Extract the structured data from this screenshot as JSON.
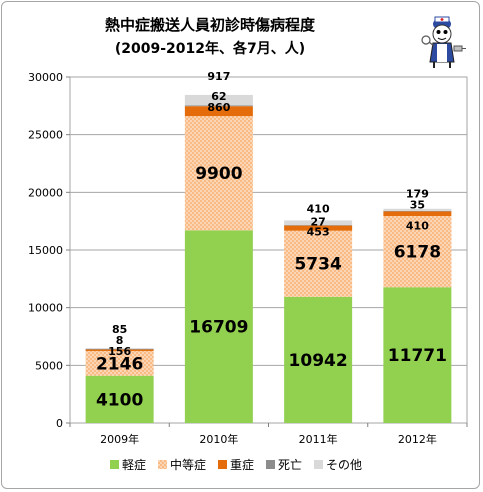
{
  "chart_data": {
    "type": "bar",
    "stacked": true,
    "title": "熱中症搬送人員初診時傷病程度",
    "subtitle": "(2009-2012年、各7月、人)",
    "categories": [
      "2009年",
      "2010年",
      "2011年",
      "2012年"
    ],
    "ylim": [
      0,
      30000
    ],
    "yticks": [
      0,
      5000,
      10000,
      15000,
      20000,
      25000,
      30000
    ],
    "grid": true,
    "legend_position": "bottom",
    "series": [
      {
        "name": "軽症",
        "color": "#92d050",
        "values": [
          4100,
          16709,
          10942,
          11771
        ]
      },
      {
        "name": "中等症",
        "color": "#fac090",
        "values": [
          2146,
          9900,
          5734,
          6178
        ]
      },
      {
        "name": "重症",
        "color": "#e46c0a",
        "values": [
          156,
          860,
          453,
          410
        ]
      },
      {
        "name": "死亡",
        "color": "#8c8c8c",
        "values": [
          8,
          62,
          27,
          35
        ]
      },
      {
        "name": "その他",
        "color": "#d9d9d9",
        "values": [
          85,
          917,
          410,
          179
        ]
      }
    ]
  },
  "mascot_icon": "nurse-mascot-icon"
}
